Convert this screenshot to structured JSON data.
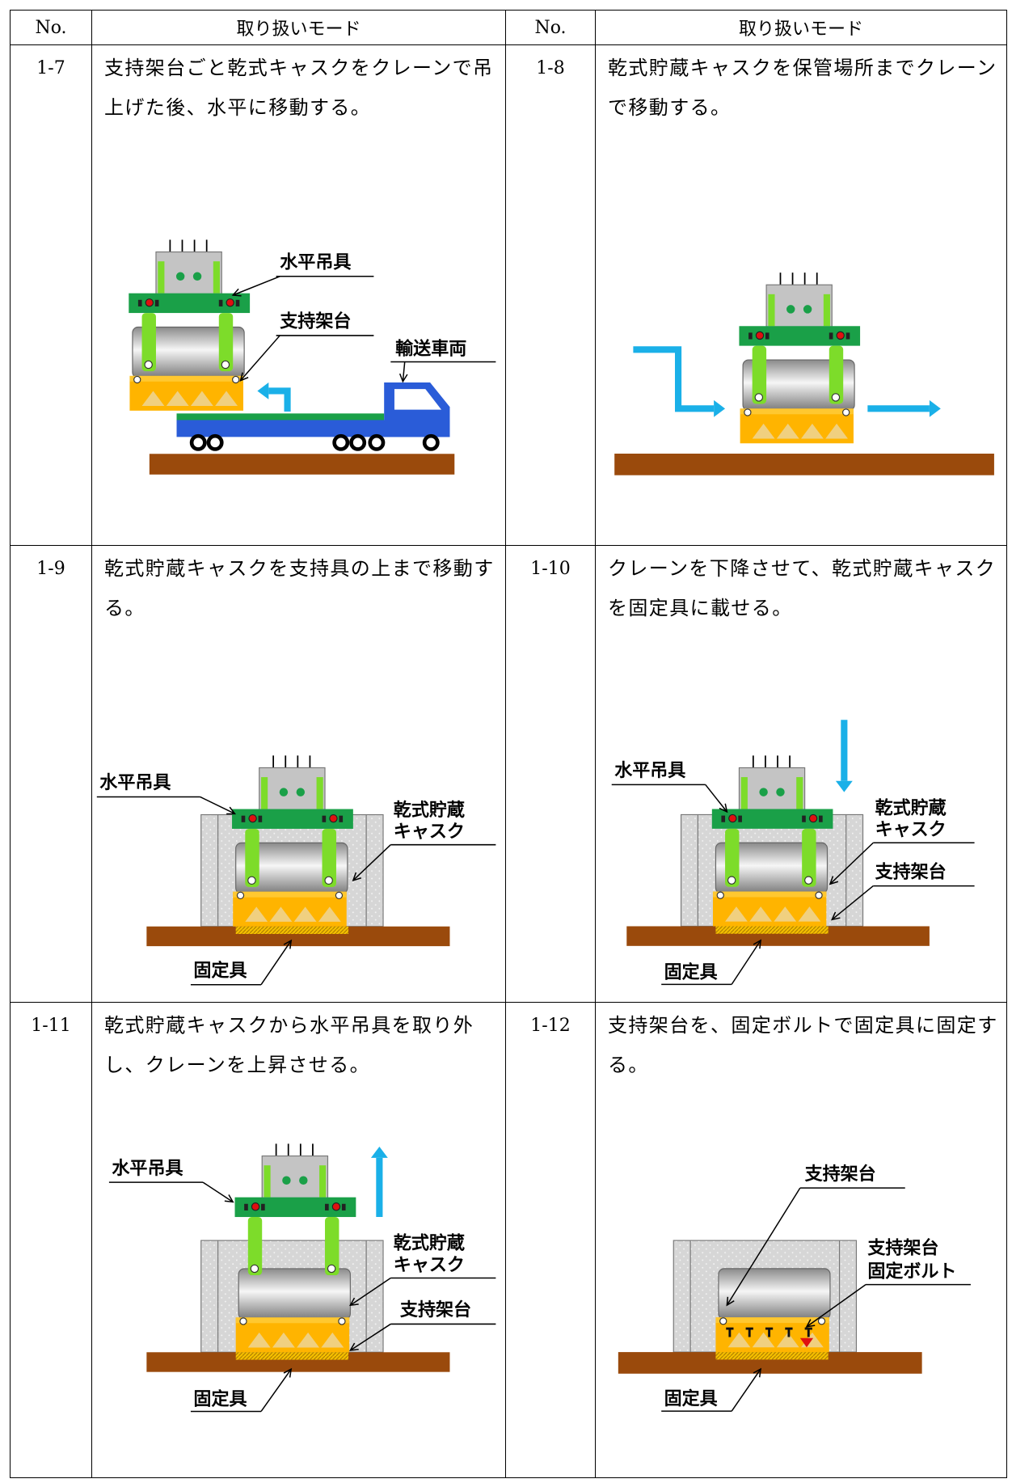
{
  "table": {
    "header": [
      "No.",
      "取り扱いモード",
      "No.",
      "取り扱いモード"
    ],
    "rows": [
      {
        "cells": [
          {
            "no": "1-7",
            "text": "支持架台ごと乾式キャスクをクレーンで吊上げた後、水平に移動する。",
            "labels": [
              "水平吊具",
              "支持架台",
              "輸送車両"
            ]
          },
          {
            "no": "1-8",
            "text": "乾式貯蔵キャスクを保管場所までクレーンで移動する。"
          }
        ]
      },
      {
        "cells": [
          {
            "no": "1-9",
            "text": "乾式貯蔵キャスクを支持具の上まで移動する。",
            "labels": [
              "水平吊具",
              "乾式貯蔵",
              "キャスク",
              "固定具"
            ]
          },
          {
            "no": "1-10",
            "text": "クレーンを下降させて、乾式貯蔵キャスクを固定具に載せる。",
            "labels": [
              "水平吊具",
              "乾式貯蔵",
              "キャスク",
              "支持架台",
              "固定具"
            ]
          }
        ]
      },
      {
        "cells": [
          {
            "no": "1-11",
            "text": "乾式貯蔵キャスクから水平吊具を取り外し、クレーンを上昇させる。",
            "labels": [
              "水平吊具",
              "乾式貯蔵",
              "キャスク",
              "支持架台",
              "固定具"
            ]
          },
          {
            "no": "1-12",
            "text": "支持架台を、固定ボルトで固定具に固定する。",
            "labels": [
              "支持架台",
              "支持架台",
              "固定ボルト",
              "固定具"
            ]
          }
        ]
      }
    ]
  }
}
